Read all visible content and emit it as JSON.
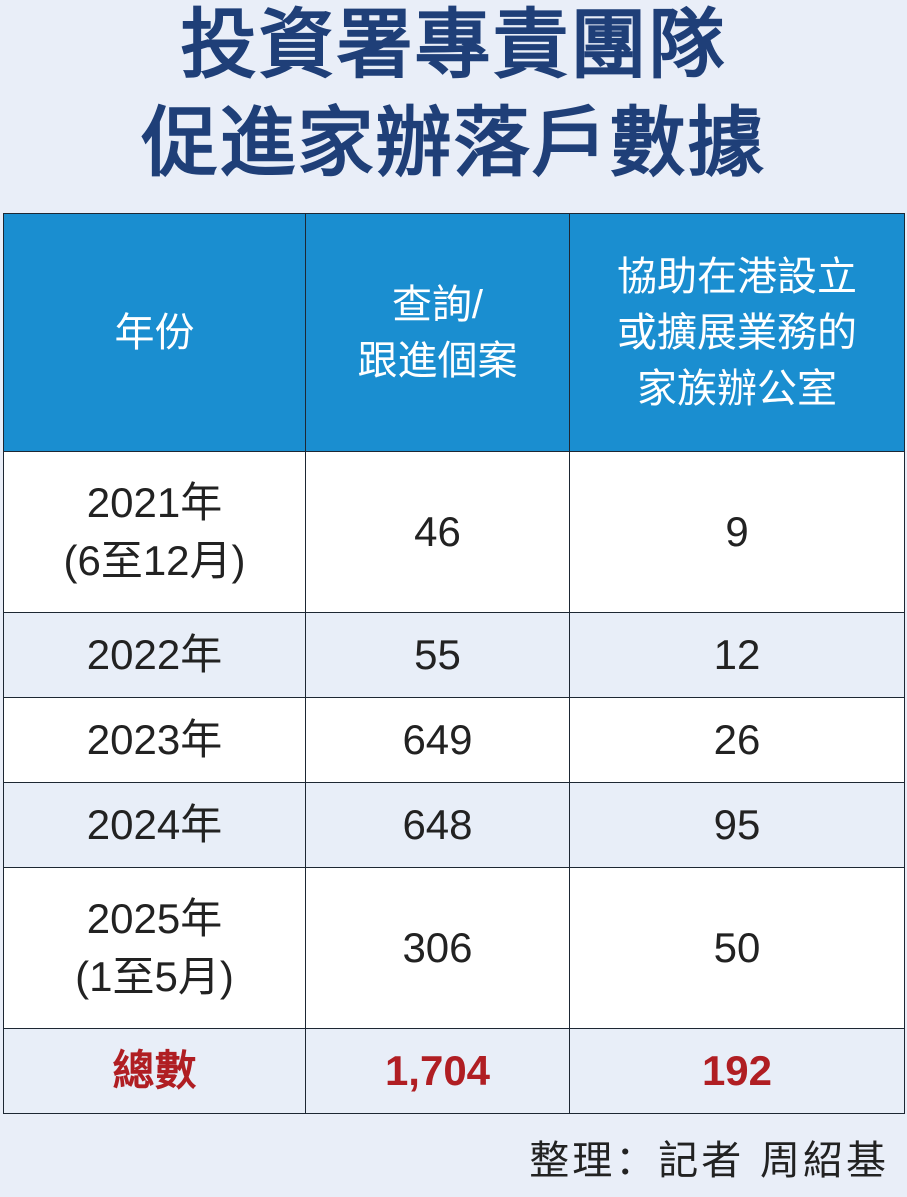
{
  "title_line1": "投資署專責團隊",
  "title_line2": "促進家辦落戶數據",
  "chart_data": {
    "type": "table",
    "columns": [
      {
        "lines": [
          "年份"
        ]
      },
      {
        "lines": [
          "查詢/",
          "跟進個案"
        ]
      },
      {
        "lines": [
          "協助在港設立",
          "或擴展業務的",
          "家族辦公室"
        ]
      }
    ],
    "rows": [
      {
        "year": [
          "2021年",
          "(6至12月)"
        ],
        "inquiries": "46",
        "offices": "9"
      },
      {
        "year": [
          "2022年"
        ],
        "inquiries": "55",
        "offices": "12"
      },
      {
        "year": [
          "2023年"
        ],
        "inquiries": "649",
        "offices": "26"
      },
      {
        "year": [
          "2024年"
        ],
        "inquiries": "648",
        "offices": "95"
      },
      {
        "year": [
          "2025年",
          "(1至5月)"
        ],
        "inquiries": "306",
        "offices": "50"
      }
    ],
    "total": {
      "label": "總數",
      "inquiries": "1,704",
      "offices": "192"
    }
  },
  "colors": {
    "title": "#1f3f78",
    "header_bg": "#1a8ed0",
    "total_text": "#b01e23",
    "alt_row_bg": "#e8eef8"
  },
  "footer": "整理：記者 周紹基"
}
